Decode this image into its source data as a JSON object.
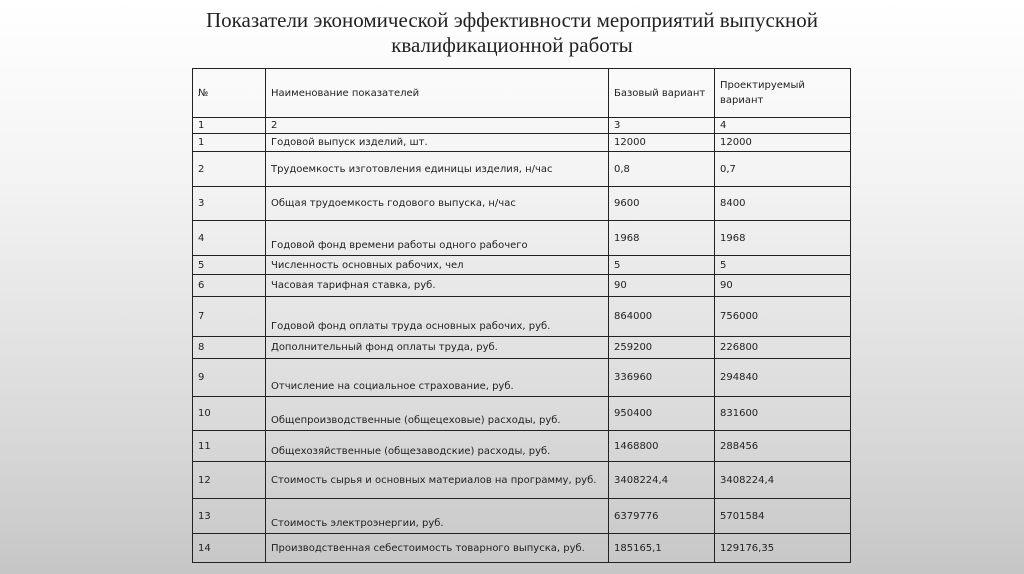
{
  "title": {
    "line1": "Показатели экономической эффективности мероприятий выпускной",
    "line2": "квалификационной работы"
  },
  "table": {
    "headers": [
      "№",
      "Наименование показателей",
      "Базовый вариант",
      "Проектируемый вариант"
    ],
    "numbering": [
      "1",
      "2",
      "3",
      "4"
    ],
    "rows": [
      [
        "1",
        "Годовой выпуск изделий, шт.",
        "12000",
        "12000"
      ],
      [
        "2",
        "Трудоемкость изготовления единицы изделия, н/час",
        "0,8",
        "0,7"
      ],
      [
        "3",
        "Общая трудоемкость годового выпуска, н/час",
        "9600",
        "8400"
      ],
      [
        "4",
        "Годовой фонд времени работы одного рабочего",
        "1968",
        "1968"
      ],
      [
        "5",
        "Численность основных рабочих, чел",
        "5",
        "5"
      ],
      [
        "6",
        "Часовая тарифная ставка, руб.",
        "90",
        "90"
      ],
      [
        "7",
        "Годовой фонд оплаты труда основных рабочих, руб.",
        "864000",
        "756000"
      ],
      [
        "8",
        "Дополнительный фонд оплаты труда, руб.",
        "259200",
        "226800"
      ],
      [
        "9",
        "Отчисление на социальное страхование, руб.",
        "336960",
        "294840"
      ],
      [
        "10",
        "Общепроизводственные (общецеховые) расходы, руб.",
        "950400",
        "831600"
      ],
      [
        "11",
        "Общехозяйственные (общезаводские) расходы, руб.",
        "1468800",
        "288456"
      ],
      [
        "12",
        "Стоимость сырья и основных материалов на программу, руб.",
        "3408224,4",
        "3408224,4"
      ],
      [
        "13",
        "Стоимость электроэнергии, руб.",
        "6379776",
        "5701584"
      ],
      [
        "14",
        "Производственная себестоимость товарного выпуска, руб.",
        "185165,1",
        "129176,35"
      ]
    ]
  }
}
